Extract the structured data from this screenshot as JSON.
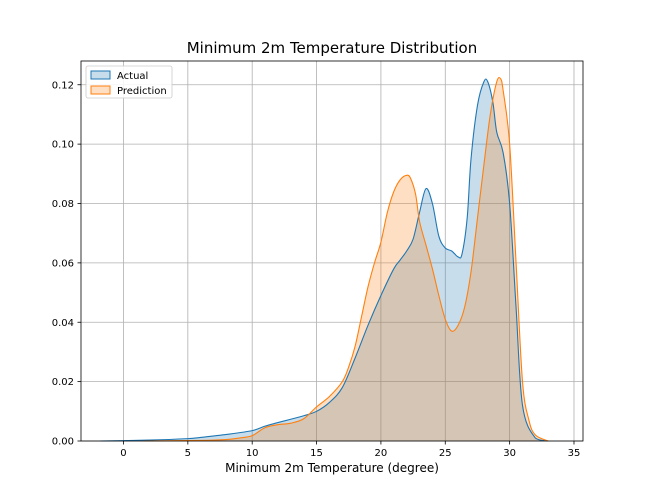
{
  "chart_data": {
    "type": "area",
    "title": "Minimum 2m Temperature Distribution",
    "xlabel": "Minimum 2m Temperature (degree)",
    "ylabel": "",
    "xlim": [
      -3.3,
      35.7
    ],
    "ylim": [
      0,
      0.128
    ],
    "xticks": [
      0,
      5,
      10,
      15,
      20,
      25,
      30,
      35
    ],
    "yticks": [
      0.0,
      0.02,
      0.04,
      0.06,
      0.08,
      0.1,
      0.12
    ],
    "ytick_labels": [
      "0.00",
      "0.02",
      "0.04",
      "0.06",
      "0.08",
      "0.10",
      "0.12"
    ],
    "grid": true,
    "legend_position": "upper-left",
    "series": [
      {
        "name": "Actual",
        "color": "#1f77b4",
        "fill": "#1f77b4",
        "fill_opacity": 0.25,
        "x": [
          -1.8,
          2,
          5,
          6,
          8,
          10,
          11,
          12,
          14,
          15,
          16,
          17,
          18,
          19,
          20,
          21,
          21.5,
          22,
          22.5,
          23,
          23.5,
          24,
          24.5,
          25,
          25.5,
          26,
          26.3,
          26.7,
          27,
          27.5,
          28,
          28.3,
          28.7,
          29,
          29.5,
          30,
          30.5,
          31,
          32,
          33
        ],
        "y": [
          0,
          0.0003,
          0.0008,
          0.0012,
          0.0022,
          0.0035,
          0.005,
          0.0062,
          0.0085,
          0.01,
          0.013,
          0.018,
          0.028,
          0.039,
          0.049,
          0.058,
          0.061,
          0.064,
          0.068,
          0.077,
          0.085,
          0.08,
          0.069,
          0.065,
          0.064,
          0.062,
          0.063,
          0.075,
          0.095,
          0.113,
          0.121,
          0.121,
          0.114,
          0.104,
          0.097,
          0.08,
          0.045,
          0.012,
          0.001,
          0
        ]
      },
      {
        "name": "Prediction",
        "color": "#ff7f0e",
        "fill": "#ff7f0e",
        "fill_opacity": 0.25,
        "x": [
          1.5,
          6,
          8,
          9,
          10,
          11,
          12,
          13,
          14,
          15,
          16,
          17,
          17.5,
          18,
          18.5,
          19,
          19.5,
          20,
          20.5,
          21,
          21.5,
          22,
          22.3,
          22.7,
          23,
          23.5,
          24,
          24.5,
          25,
          25.5,
          26,
          26.5,
          27,
          27.5,
          28,
          28.5,
          29,
          29.3,
          29.5,
          30,
          30.5,
          31,
          31.5,
          32,
          33
        ],
        "y": [
          0,
          0.0002,
          0.0005,
          0.001,
          0.0018,
          0.0045,
          0.0055,
          0.006,
          0.0075,
          0.0115,
          0.015,
          0.02,
          0.025,
          0.032,
          0.042,
          0.052,
          0.06,
          0.067,
          0.077,
          0.084,
          0.088,
          0.0895,
          0.0885,
          0.083,
          0.074,
          0.066,
          0.058,
          0.049,
          0.041,
          0.037,
          0.039,
          0.045,
          0.057,
          0.075,
          0.093,
          0.11,
          0.121,
          0.122,
          0.118,
          0.1,
          0.06,
          0.02,
          0.007,
          0.002,
          0
        ]
      }
    ]
  }
}
